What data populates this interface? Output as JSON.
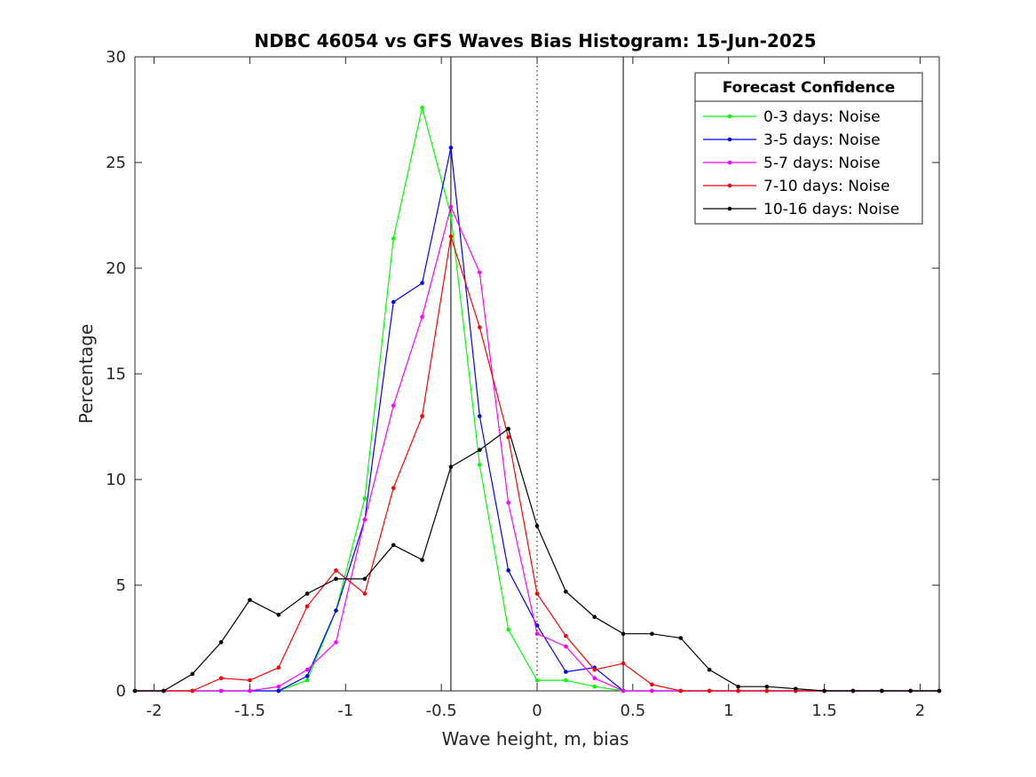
{
  "chart_data": {
    "type": "line",
    "title": "NDBC 46054 vs GFS Waves Bias Histogram: 15-Jun-2025",
    "xlabel": "Wave height, m, bias",
    "ylabel": "Percentage",
    "xlim": [
      -2.1,
      2.1
    ],
    "ylim": [
      0,
      30
    ],
    "xticks": [
      -2,
      -1.5,
      -1,
      -0.5,
      0,
      0.5,
      1,
      1.5,
      2
    ],
    "xtick_labels": [
      "-2",
      "-1.5",
      "-1",
      "-0.5",
      "0",
      "0.5",
      "1",
      "1.5",
      "2"
    ],
    "yticks": [
      0,
      5,
      10,
      15,
      20,
      25,
      30
    ],
    "ytick_labels": [
      "0",
      "5",
      "10",
      "15",
      "20",
      "25",
      "30"
    ],
    "vertical_lines": [
      {
        "x": -0.45,
        "style": "solid"
      },
      {
        "x": 0,
        "style": "dotted"
      },
      {
        "x": 0.45,
        "style": "solid"
      }
    ],
    "legend": {
      "title": "Forecast Confidence",
      "placement": "top-right"
    },
    "x": [
      -2.1,
      -1.95,
      -1.8,
      -1.65,
      -1.5,
      -1.35,
      -1.2,
      -1.05,
      -0.9,
      -0.75,
      -0.6,
      -0.45,
      -0.3,
      -0.15,
      0,
      0.15,
      0.3,
      0.45,
      0.6,
      0.75,
      0.9,
      1.05,
      1.2,
      1.35,
      1.5,
      1.65,
      1.8,
      1.95,
      2.1
    ],
    "series": [
      {
        "name": "0-3 days: Noise",
        "color": "#00ff00",
        "values": [
          0,
          0,
          0,
          0,
          0,
          0,
          0.5,
          3.8,
          9.1,
          21.4,
          27.6,
          22.5,
          10.7,
          2.9,
          0.5,
          0.5,
          0.2,
          0,
          0,
          0,
          0,
          0,
          0,
          0,
          0,
          0,
          0,
          0,
          0
        ]
      },
      {
        "name": "3-5 days: Noise",
        "color": "#0000ff",
        "values": [
          0,
          0,
          0,
          0,
          0,
          0,
          0.7,
          3.8,
          8.1,
          18.4,
          19.3,
          25.7,
          13.0,
          5.7,
          3.1,
          0.9,
          1.1,
          0,
          0,
          0,
          0,
          0,
          0,
          0,
          0,
          0,
          0,
          0,
          0
        ]
      },
      {
        "name": "5-7 days: Noise",
        "color": "#ff00ff",
        "values": [
          0,
          0,
          0,
          0,
          0,
          0.2,
          1.0,
          2.3,
          8.1,
          13.5,
          17.7,
          22.9,
          19.8,
          8.9,
          2.7,
          2.1,
          0.6,
          0,
          0,
          0,
          0,
          0,
          0,
          0,
          0,
          0,
          0,
          0,
          0
        ]
      },
      {
        "name": "7-10 days: Noise",
        "color": "#ff0000",
        "values": [
          0,
          0,
          0,
          0.6,
          0.5,
          1.1,
          4.0,
          5.7,
          4.6,
          9.6,
          13.0,
          21.5,
          17.2,
          12.0,
          4.6,
          2.6,
          1.0,
          1.3,
          0.3,
          0,
          0,
          0,
          0,
          0,
          0,
          0,
          0,
          0,
          0
        ]
      },
      {
        "name": "10-16 days: Noise",
        "color": "#000000",
        "values": [
          0,
          0,
          0.8,
          2.3,
          4.3,
          3.6,
          4.6,
          5.3,
          5.3,
          6.9,
          6.2,
          10.6,
          11.4,
          12.4,
          7.8,
          4.7,
          3.5,
          2.7,
          2.7,
          2.5,
          1.0,
          0.2,
          0.2,
          0.1,
          0,
          0,
          0,
          0,
          0
        ]
      }
    ]
  }
}
